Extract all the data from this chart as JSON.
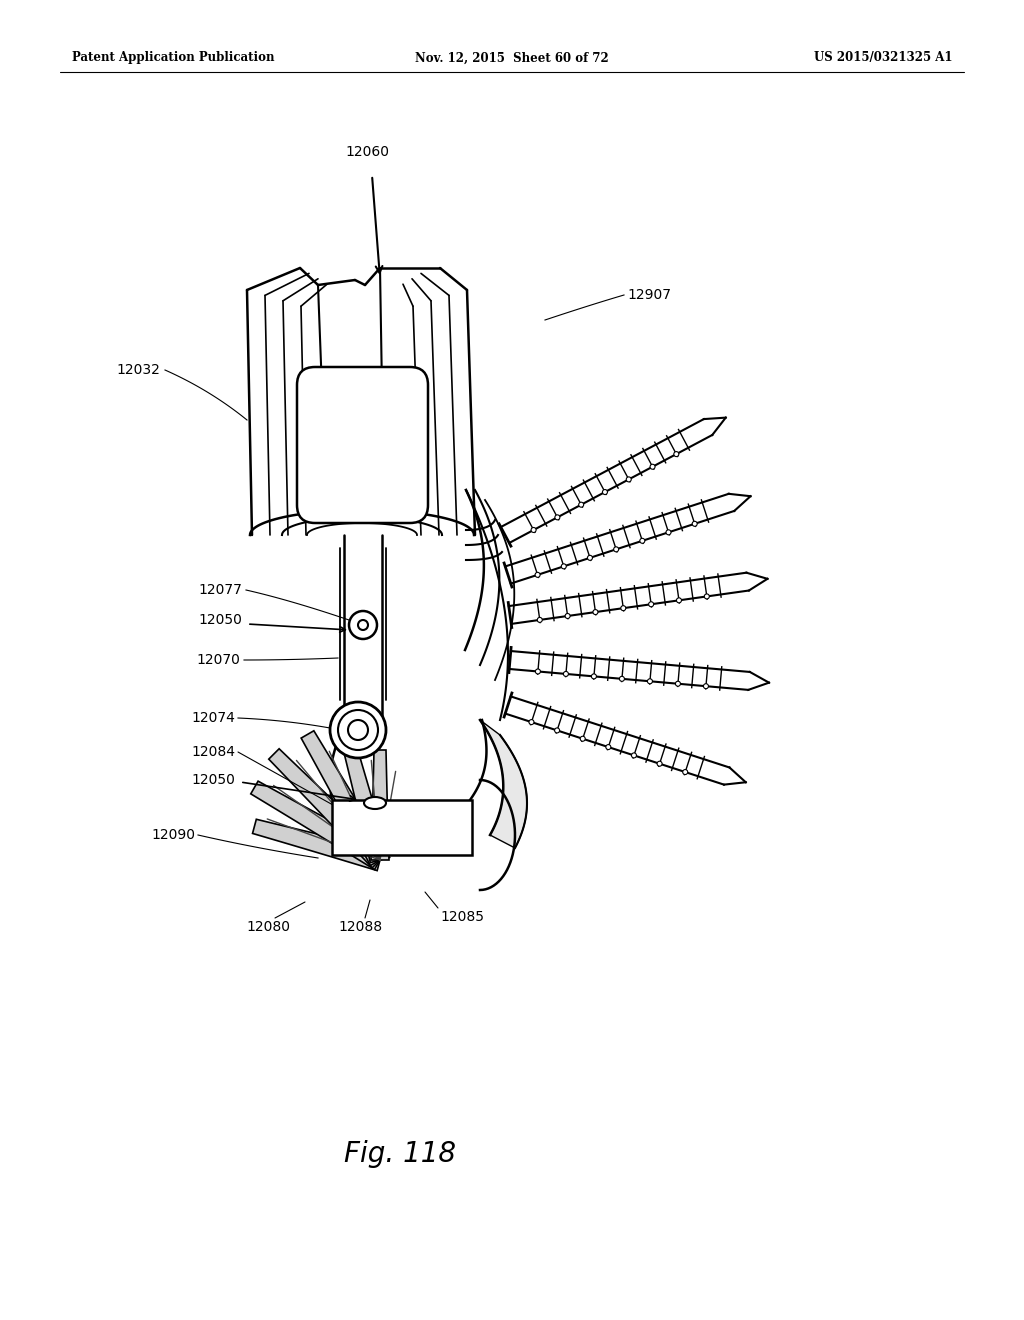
{
  "bg_color": "#ffffff",
  "header_left": "Patent Application Publication",
  "header_mid": "Nov. 12, 2015  Sheet 60 of 72",
  "header_right": "US 2015/0321325 A1",
  "fig_label": "Fig. 118",
  "black": "#000000",
  "gray": "#888888",
  "lightgray": "#cccccc"
}
